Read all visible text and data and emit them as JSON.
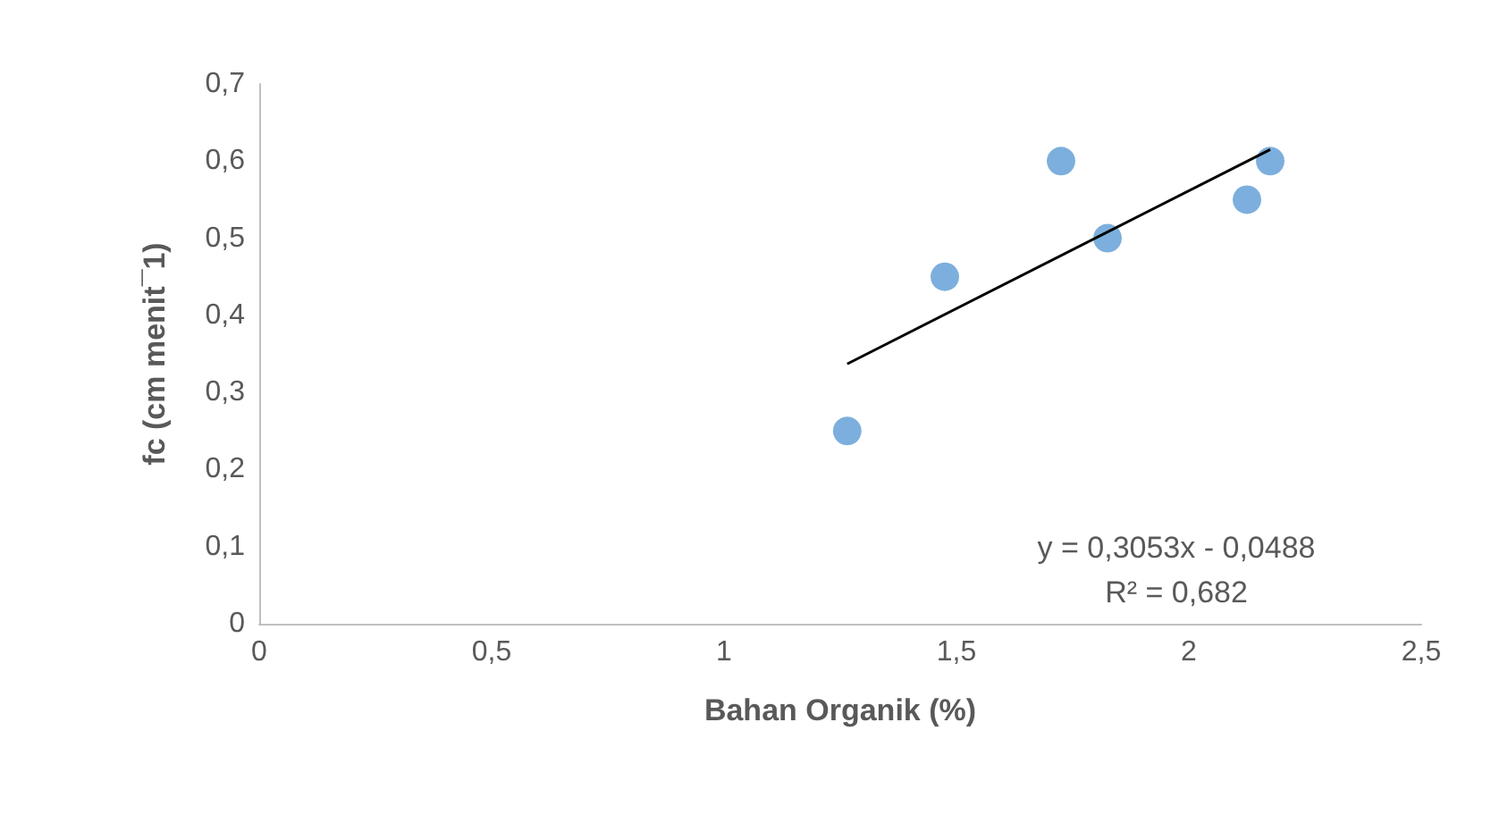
{
  "chart_data": {
    "type": "scatter",
    "xlabel": "Bahan Organik (%)",
    "ylabel": "fc (cm menit¯1)",
    "series": [
      {
        "color": "#5b9bd5",
        "x": [
          1.265,
          1.475,
          1.725,
          1.825,
          2.125,
          2.175
        ],
        "values": [
          0.25,
          0.45,
          0.6,
          0.5,
          0.55,
          0.6
        ],
        "marker": "circle"
      },
      {
        "type": "line",
        "color": "#000000",
        "x": [
          1.265,
          2.175
        ],
        "values": [
          0.337,
          0.615
        ],
        "marker": "none",
        "line_style": "solid"
      }
    ],
    "xlim": [
      0,
      2.5
    ],
    "xticks": [
      0,
      {
        "value": 0.5,
        "label": "0,5"
      },
      1,
      {
        "value": 1.5,
        "label": "1,5"
      },
      2,
      {
        "value": 2.5,
        "label": "2,5"
      }
    ],
    "ylim": [
      0,
      0.7
    ],
    "yticks": [
      0,
      {
        "value": 0.1,
        "label": "0,1"
      },
      {
        "value": 0.2,
        "label": "0,2"
      },
      {
        "value": 0.3,
        "label": "0,3"
      },
      {
        "value": 0.4,
        "label": "0,4"
      },
      {
        "value": 0.5,
        "label": "0,5"
      },
      {
        "value": 0.6,
        "label": "0,6"
      },
      {
        "value": 0.7,
        "label": "0,7"
      }
    ],
    "annotations": [
      "y = 0,3053x - 0,0488",
      "R² = 0,682"
    ],
    "grid": false
  }
}
